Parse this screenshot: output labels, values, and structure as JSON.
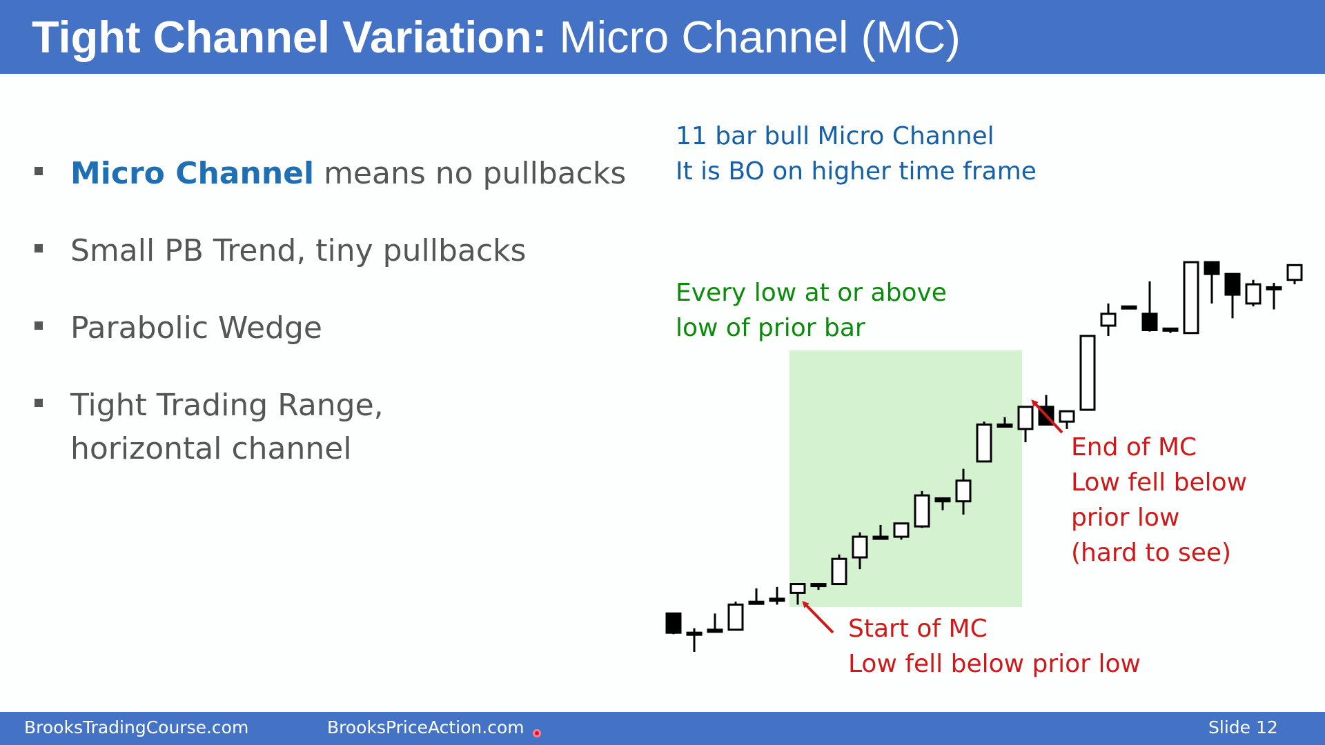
{
  "slide": {
    "title_bold": "Tight Channel Variation:",
    "title_rest": " Micro Channel (MC)",
    "bullets": [
      {
        "highlight": "Micro Channel",
        "text": " means no pullbacks"
      },
      {
        "text": "Small PB Trend, tiny pullbacks"
      },
      {
        "text": "Parabolic Wedge"
      },
      {
        "line1": "Tight Trading Range,",
        "line2": "horizontal channel"
      }
    ],
    "annotations": {
      "blue": [
        "11 bar bull Micro Channel",
        "It is BO on higher time frame"
      ],
      "green": [
        "Every low at or above",
        "low of prior bar"
      ],
      "start": [
        "Start of MC",
        "Low fell below prior low"
      ],
      "end": [
        "End of MC",
        "Low fell below",
        "prior low",
        "(hard to see)"
      ]
    },
    "footer": {
      "left": "BrooksTradingCourse.com",
      "middle": "BrooksPriceAction.com",
      "slide_label": "Slide  12"
    }
  },
  "colors": {
    "header": "#4472c4",
    "highlight": "#1f6fb5",
    "blue_note": "#1560a8",
    "green_note": "#0a8c0a",
    "red_note": "#d01818",
    "micro_channel_shade": "#d4f1d0"
  },
  "chart_data": {
    "type": "candlestick",
    "note": "price values read in chart units; bars listed left to right",
    "bars": [
      {
        "o": 100,
        "h": 100,
        "l": 86,
        "c": 87,
        "bull": false
      },
      {
        "o": 86,
        "h": 90,
        "l": 74,
        "c": 87,
        "bull": true
      },
      {
        "o": 89,
        "h": 100,
        "l": 89,
        "c": 89,
        "bull": true
      },
      {
        "o": 89,
        "h": 108,
        "l": 89,
        "c": 106,
        "bull": true
      },
      {
        "o": 107,
        "h": 117,
        "l": 106,
        "c": 108,
        "bull": false
      },
      {
        "o": 110,
        "h": 118,
        "l": 106,
        "c": 110,
        "bull": true
      },
      {
        "o": 114,
        "h": 120,
        "l": 106,
        "c": 120,
        "bull": true
      },
      {
        "o": 120,
        "h": 120,
        "l": 116,
        "c": 120,
        "bull": true
      },
      {
        "o": 120,
        "h": 140,
        "l": 120,
        "c": 137,
        "bull": true
      },
      {
        "o": 138,
        "h": 155,
        "l": 130,
        "c": 152,
        "bull": true
      },
      {
        "o": 152,
        "h": 160,
        "l": 152,
        "c": 152,
        "bull": true
      },
      {
        "o": 152,
        "h": 160,
        "l": 150,
        "c": 161,
        "bull": true
      },
      {
        "o": 159,
        "h": 183,
        "l": 158,
        "c": 180,
        "bull": true
      },
      {
        "o": 178,
        "h": 178,
        "l": 170,
        "c": 176,
        "bull": false
      },
      {
        "o": 176,
        "h": 198,
        "l": 167,
        "c": 190,
        "bull": true
      },
      {
        "o": 203,
        "h": 230,
        "l": 203,
        "c": 228,
        "bull": true
      },
      {
        "o": 228,
        "h": 233,
        "l": 228,
        "c": 228,
        "bull": true
      },
      {
        "o": 225,
        "h": 240,
        "l": 216,
        "c": 240,
        "bull": true
      },
      {
        "o": 240,
        "h": 248,
        "l": 228,
        "c": 228,
        "bull": false
      },
      {
        "o": 230,
        "h": 237,
        "l": 225,
        "c": 237,
        "bull": true
      },
      {
        "o": 238,
        "h": 287,
        "l": 238,
        "c": 288,
        "bull": true
      },
      {
        "o": 295,
        "h": 310,
        "l": 288,
        "c": 303,
        "bull": true
      },
      {
        "o": 308,
        "h": 306,
        "l": 306,
        "c": 307,
        "bull": false
      },
      {
        "o": 303,
        "h": 325,
        "l": 291,
        "c": 292,
        "bull": false
      },
      {
        "o": 293,
        "h": 293,
        "l": 290,
        "c": 293,
        "bull": true
      },
      {
        "o": 290,
        "h": 335,
        "l": 290,
        "c": 338,
        "bull": true
      },
      {
        "o": 338,
        "h": 333,
        "l": 310,
        "c": 330,
        "bull": false
      },
      {
        "o": 330,
        "h": 316,
        "l": 300,
        "c": 316,
        "bull": false
      },
      {
        "o": 310,
        "h": 326,
        "l": 308,
        "c": 323,
        "bull": true
      },
      {
        "o": 320,
        "h": 324,
        "l": 306,
        "c": 321,
        "bull": true
      },
      {
        "o": 326,
        "h": 332,
        "l": 323,
        "c": 336,
        "bull": true
      }
    ],
    "highlight_range": {
      "from_bar": 6,
      "to_bar": 16
    }
  }
}
